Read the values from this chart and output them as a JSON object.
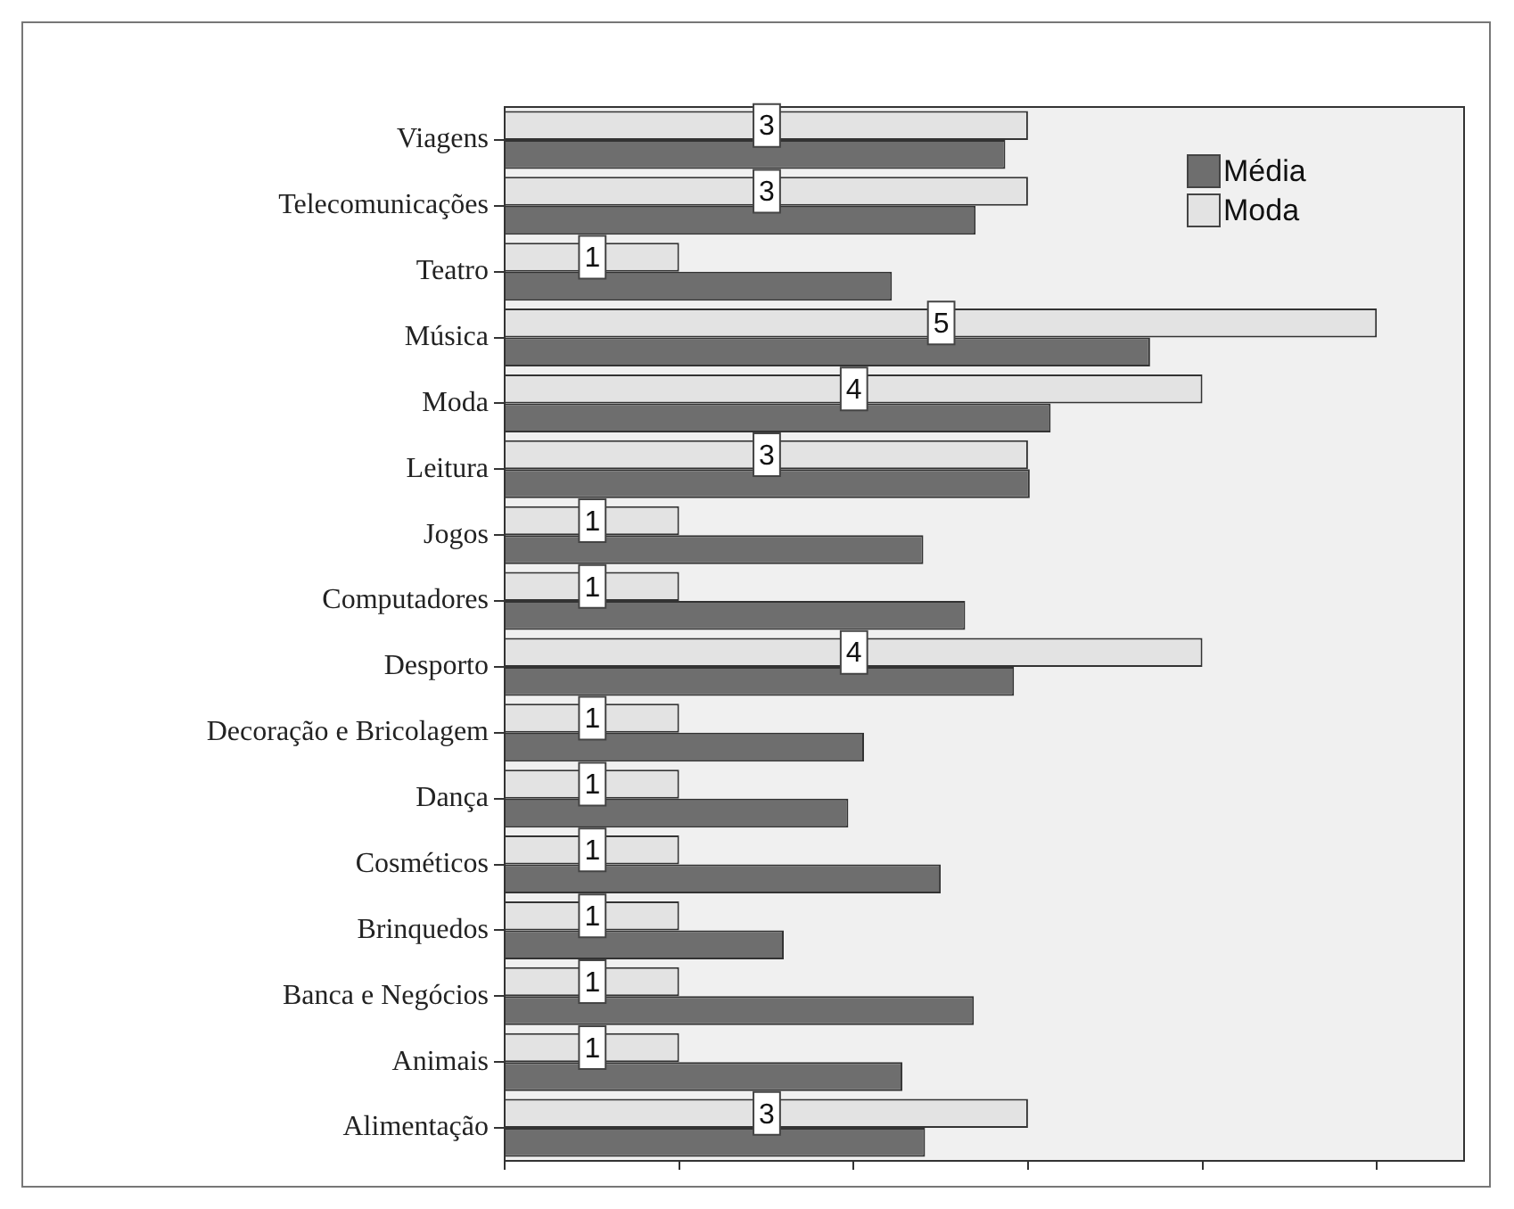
{
  "chart_data": {
    "type": "bar",
    "orientation": "horizontal",
    "categories": [
      "Viagens",
      "Telecomunicações",
      "Teatro",
      "Música",
      "Moda",
      "Leitura",
      "Jogos",
      "Computadores",
      "Desporto",
      "Decoração e Bricolagem",
      "Dança",
      "Cosméticos",
      "Brinquedos",
      "Banca e Negócios",
      "Animais",
      "Alimentação"
    ],
    "series": [
      {
        "name": "Média",
        "color": "#6e6e6e",
        "values": [
          2.87,
          2.7,
          2.22,
          3.7,
          3.13,
          3.01,
          2.4,
          2.64,
          2.92,
          2.06,
          1.97,
          2.5,
          1.6,
          2.69,
          2.28,
          2.41
        ]
      },
      {
        "name": "Moda",
        "color": "#e3e3e3",
        "values": [
          3,
          3,
          1,
          5,
          4,
          3,
          1,
          1,
          4,
          1,
          1,
          1,
          1,
          1,
          1,
          3
        ],
        "value_labels": [
          "3",
          "3",
          "1",
          "5",
          "4",
          "3",
          "1",
          "1",
          "4",
          "1",
          "1",
          "1",
          "1",
          "1",
          "1",
          "3"
        ]
      }
    ],
    "xlim": [
      0,
      5.5
    ],
    "xticks": [
      {
        "value": 0,
        "label": null
      },
      {
        "value": 1,
        "label": null
      },
      {
        "value": 2,
        "label": null
      },
      {
        "value": 3,
        "label": null
      },
      {
        "value": 4,
        "label": null
      },
      {
        "value": 5,
        "label": null
      }
    ],
    "tick_labels": "y",
    "grid": false,
    "legend": "top right"
  }
}
